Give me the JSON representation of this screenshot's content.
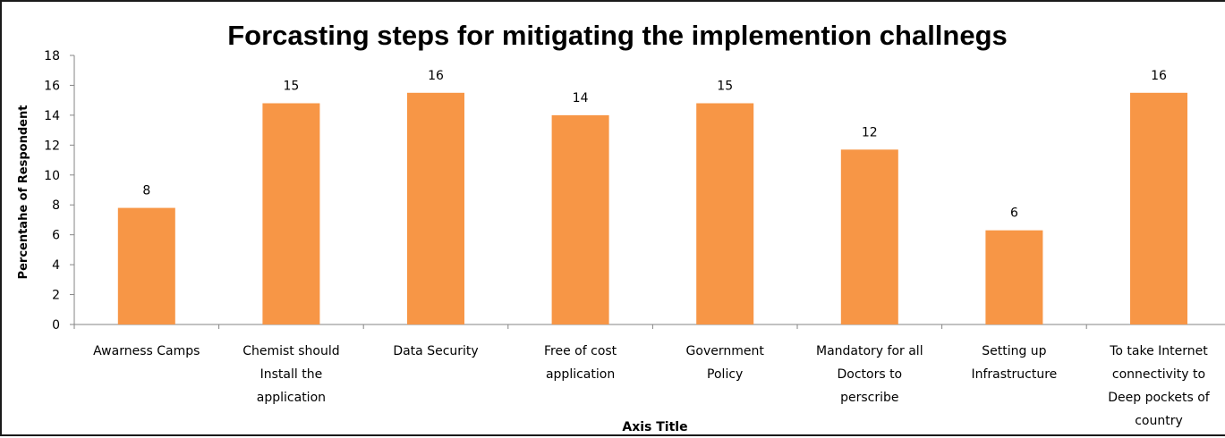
{
  "chart_data": {
    "type": "bar",
    "title": "Forcasting steps for mitigating the implemention challnegs",
    "xlabel": "Axis Title",
    "ylabel": "Percentahe of Respondent",
    "ylim": [
      0,
      18
    ],
    "yticks": [
      0,
      2,
      4,
      6,
      8,
      10,
      12,
      14,
      16,
      18
    ],
    "grid": false,
    "legend": "none",
    "bar_color": "#f79646",
    "categories": [
      [
        "Awarness Camps"
      ],
      [
        "Chemist should",
        "Install the",
        "application"
      ],
      [
        "Data Security"
      ],
      [
        "Free of cost",
        "application"
      ],
      [
        "Government",
        "Policy"
      ],
      [
        "Mandatory for all",
        "Doctors to",
        "perscribe"
      ],
      [
        "Setting up",
        "Infrastructure"
      ],
      [
        "To take Internet",
        "connectivity to",
        "Deep pockets of",
        "country"
      ]
    ],
    "values": [
      7.8,
      14.8,
      15.5,
      14.0,
      14.8,
      11.7,
      6.3,
      15.5
    ],
    "data_labels": [
      "8",
      "15",
      "16",
      "14",
      "15",
      "12",
      "6",
      "16"
    ]
  }
}
